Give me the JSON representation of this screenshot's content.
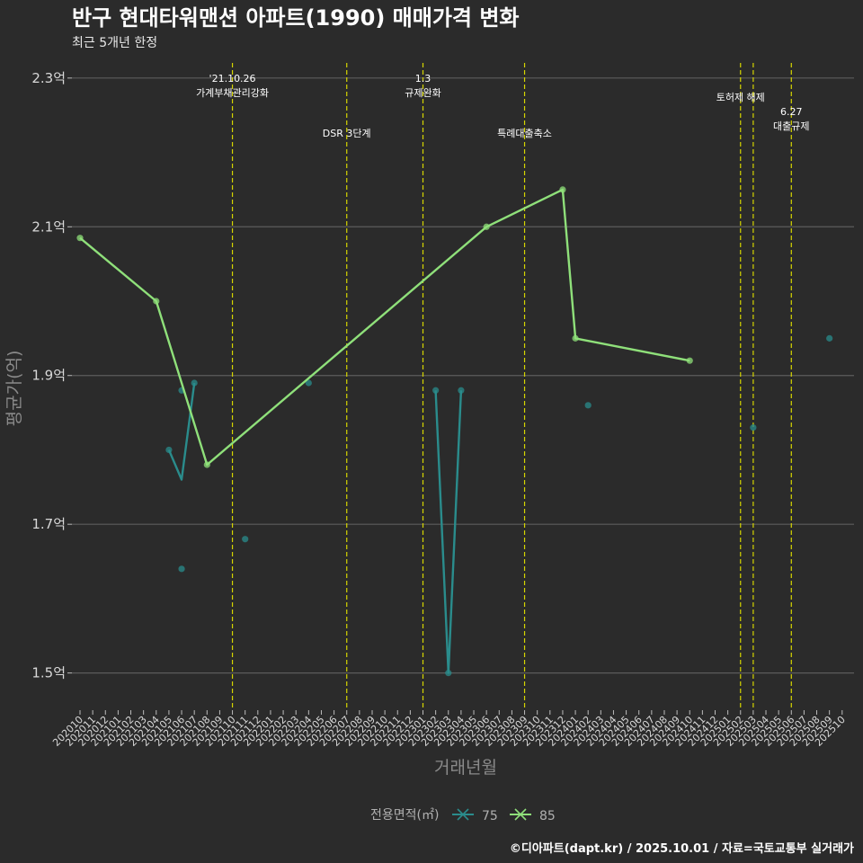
{
  "chart_data": {
    "type": "line",
    "title": "반구 현대타워맨션 아파트(1990) 매매가격 변화",
    "subtitle": "최근 5개년 한정",
    "xlabel": "거래년월",
    "ylabel": "평균가(억)",
    "ylim": [
      1.45,
      2.33
    ],
    "y_ticks": [
      {
        "value": 1.5,
        "label": "1.5억"
      },
      {
        "value": 1.7,
        "label": "1.7억"
      },
      {
        "value": 1.9,
        "label": "1.9억"
      },
      {
        "value": 2.1,
        "label": "2.1억"
      },
      {
        "value": 2.3,
        "label": "2.3억"
      }
    ],
    "categories": [
      "202010",
      "202011",
      "202012",
      "202101",
      "202102",
      "202103",
      "202104",
      "202105",
      "202106",
      "202107",
      "202108",
      "202109",
      "202110",
      "202111",
      "202112",
      "202201",
      "202202",
      "202203",
      "202204",
      "202205",
      "202206",
      "202207",
      "202208",
      "202209",
      "202210",
      "202211",
      "202212",
      "202301",
      "202302",
      "202303",
      "202304",
      "202305",
      "202306",
      "202307",
      "202308",
      "202309",
      "202310",
      "202311",
      "202312",
      "202401",
      "202402",
      "202403",
      "202404",
      "202405",
      "202406",
      "202407",
      "202408",
      "202409",
      "202410",
      "202411",
      "202412",
      "202501",
      "202502",
      "202503",
      "202504",
      "202505",
      "202506",
      "202507",
      "202508",
      "202509",
      "202510"
    ],
    "series": [
      {
        "name": "75",
        "color": "#2a8c8c",
        "segments": [
          [
            {
              "x": "202105",
              "y": 1.8
            },
            {
              "x": "202106",
              "y": 1.76
            },
            {
              "x": "202107",
              "y": 1.89
            }
          ],
          [
            {
              "x": "202302",
              "y": 1.88
            },
            {
              "x": "202303",
              "y": 1.5
            },
            {
              "x": "202304",
              "y": 1.88
            }
          ]
        ],
        "points": [
          {
            "x": "202105",
            "y": 1.8
          },
          {
            "x": "202106",
            "y": 1.64
          },
          {
            "x": "202106",
            "y": 1.88
          },
          {
            "x": "202107",
            "y": 1.89
          },
          {
            "x": "202111",
            "y": 1.68
          },
          {
            "x": "202204",
            "y": 1.89
          },
          {
            "x": "202302",
            "y": 1.88
          },
          {
            "x": "202303",
            "y": 1.5
          },
          {
            "x": "202304",
            "y": 1.88
          },
          {
            "x": "202402",
            "y": 1.86
          },
          {
            "x": "202503",
            "y": 1.83
          },
          {
            "x": "202509",
            "y": 1.95
          }
        ]
      },
      {
        "name": "85",
        "color": "#8fe07a",
        "segments": [
          [
            {
              "x": "202010",
              "y": 2.085
            },
            {
              "x": "202104",
              "y": 2.0
            },
            {
              "x": "202108",
              "y": 1.78
            },
            {
              "x": "202306",
              "y": 2.1
            },
            {
              "x": "202312",
              "y": 2.15
            },
            {
              "x": "202401",
              "y": 1.95
            },
            {
              "x": "202410",
              "y": 1.92
            }
          ]
        ],
        "points": [
          {
            "x": "202010",
            "y": 2.085
          },
          {
            "x": "202104",
            "y": 2.0
          },
          {
            "x": "202108",
            "y": 1.78
          },
          {
            "x": "202306",
            "y": 2.1
          },
          {
            "x": "202312",
            "y": 2.15
          },
          {
            "x": "202401",
            "y": 1.95
          },
          {
            "x": "202410",
            "y": 1.92
          }
        ]
      }
    ],
    "annotations": [
      {
        "x": "202110",
        "lines": [
          "'21.10.26",
          "가계부채관리강화"
        ],
        "level": 1
      },
      {
        "x": "202207",
        "lines": [
          "DSR 3단계"
        ],
        "level": 2
      },
      {
        "x": "202301",
        "lines": [
          "1.3",
          "규제완화"
        ],
        "level": 1
      },
      {
        "x": "202309",
        "lines": [
          "특례대출축소"
        ],
        "level": 2
      },
      {
        "x": "202502",
        "lines": [
          "토허제 해제"
        ],
        "level": 0
      },
      {
        "x": "202503",
        "lines": [],
        "level": 0
      },
      {
        "x": "202506",
        "lines": [
          "6.27",
          "대출규제"
        ],
        "level": 3
      }
    ],
    "annotation_color": "#d6d600",
    "grid": "horizontal",
    "legend": {
      "title": "전용면적(㎡)",
      "placement": "bottom"
    }
  },
  "footer": "©디아파트(dapt.kr) / 2025.10.01 / 자료=국토교통부 실거래가"
}
